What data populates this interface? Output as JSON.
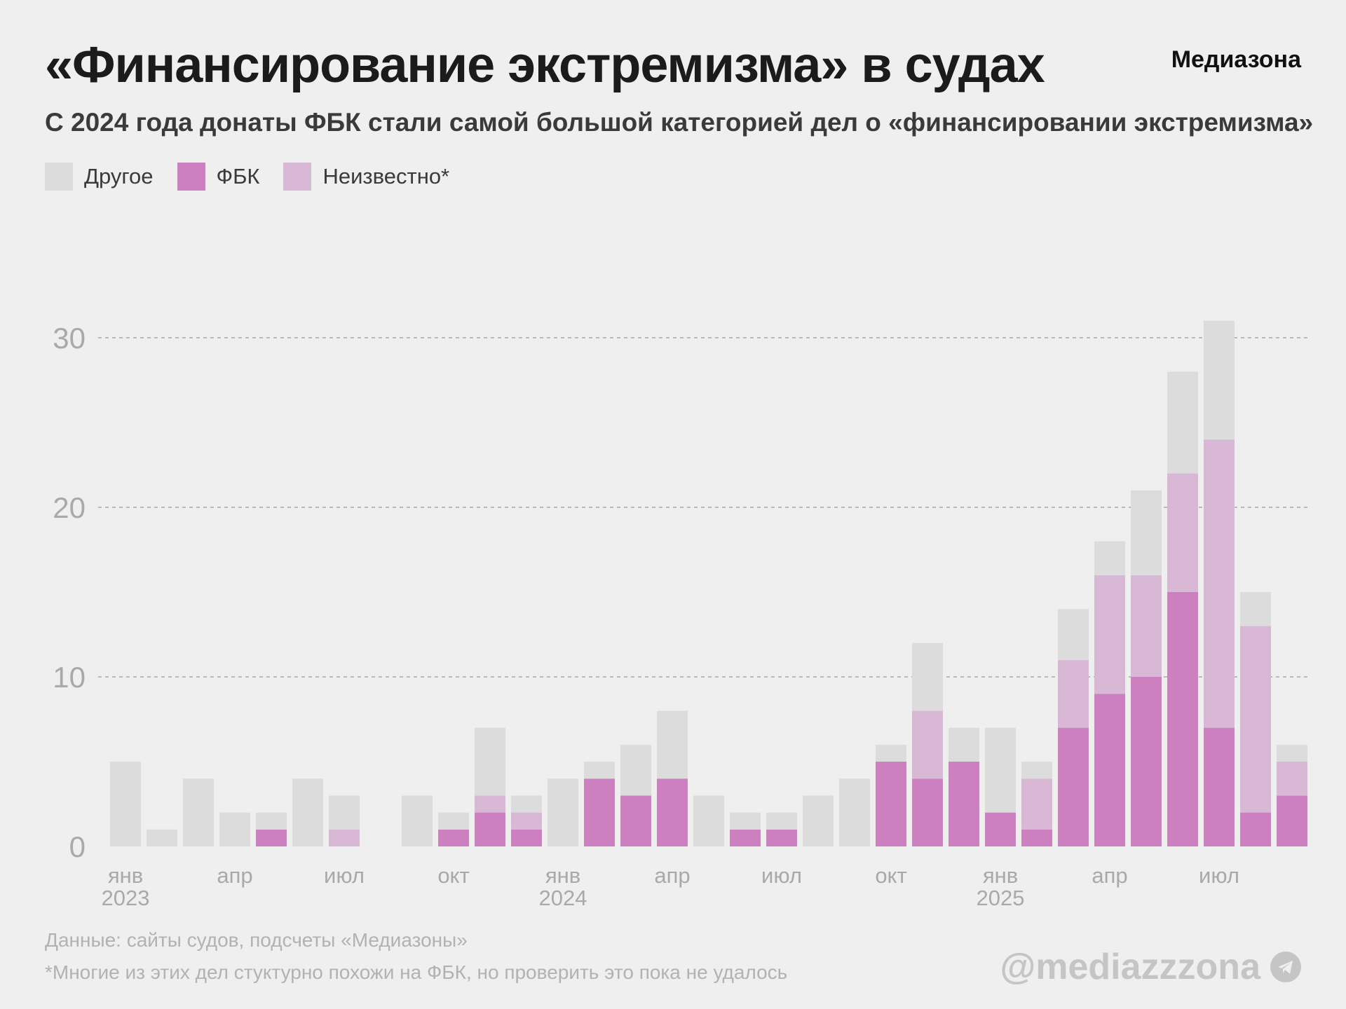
{
  "title": "«Финансирование экстремизма» в судах",
  "brand": "Медиазона",
  "subtitle": "С 2024 года донаты ФБК стали самой большой категорией дел о «финансировании экстремизма»",
  "legend": [
    {
      "label": "Другое",
      "color": "#dcdcdc"
    },
    {
      "label": "ФБК",
      "color": "#cc80c0"
    },
    {
      "label": "Неизвестно*",
      "color": "#d8b8d4"
    }
  ],
  "footnotes": {
    "source": "Данные: сайты судов, подсчеты «Медиазоны»",
    "note": "*Многие из этих дел стуктурно похожи на ФБК, но проверить это пока не удалось"
  },
  "handle": "@mediazzzona",
  "icons": {
    "telegram": "telegram-icon"
  },
  "chart_data": {
    "type": "bar",
    "stacked": true,
    "title": "",
    "xlabel": "",
    "ylabel": "",
    "ylim": [
      0,
      32
    ],
    "yticks": [
      0,
      10,
      20,
      30
    ],
    "grid": true,
    "categories": [
      "2023-01",
      "2023-02",
      "2023-03",
      "2023-04",
      "2023-05",
      "2023-06",
      "2023-07",
      "2023-08",
      "2023-09",
      "2023-10",
      "2023-11",
      "2023-12",
      "2024-01",
      "2024-02",
      "2024-03",
      "2024-04",
      "2024-05",
      "2024-06",
      "2024-07",
      "2024-08",
      "2024-09",
      "2024-10",
      "2024-11",
      "2024-12",
      "2025-01",
      "2025-02",
      "2025-03",
      "2025-04",
      "2025-05",
      "2025-06",
      "2025-07",
      "2025-08",
      "2025-09"
    ],
    "xtick_labels": [
      {
        "index": 0,
        "month": "янв",
        "year": "2023"
      },
      {
        "index": 3,
        "month": "апр",
        "year": ""
      },
      {
        "index": 6,
        "month": "июл",
        "year": ""
      },
      {
        "index": 9,
        "month": "окт",
        "year": ""
      },
      {
        "index": 12,
        "month": "янв",
        "year": "2024"
      },
      {
        "index": 15,
        "month": "апр",
        "year": ""
      },
      {
        "index": 18,
        "month": "июл",
        "year": ""
      },
      {
        "index": 21,
        "month": "окт",
        "year": ""
      },
      {
        "index": 24,
        "month": "янв",
        "year": "2025"
      },
      {
        "index": 27,
        "month": "апр",
        "year": ""
      },
      {
        "index": 30,
        "month": "июл",
        "year": ""
      }
    ],
    "series": [
      {
        "name": "ФБК",
        "color": "#cc80c0",
        "values": [
          0,
          0,
          0,
          0,
          1,
          0,
          0,
          0,
          0,
          1,
          2,
          1,
          0,
          4,
          3,
          4,
          0,
          1,
          1,
          0,
          0,
          5,
          4,
          5,
          2,
          1,
          7,
          9,
          10,
          15,
          7,
          2,
          3
        ]
      },
      {
        "name": "Неизвестно*",
        "color": "#d8b8d4",
        "values": [
          0,
          0,
          0,
          0,
          0,
          0,
          1,
          0,
          0,
          0,
          1,
          1,
          0,
          0,
          0,
          0,
          0,
          0,
          0,
          0,
          0,
          0,
          4,
          0,
          0,
          3,
          4,
          7,
          6,
          7,
          17,
          11,
          2
        ]
      },
      {
        "name": "Другое",
        "color": "#dcdcdc",
        "values": [
          5,
          1,
          4,
          2,
          1,
          4,
          2,
          0,
          3,
          1,
          4,
          1,
          4,
          1,
          3,
          4,
          3,
          1,
          1,
          3,
          4,
          1,
          4,
          2,
          5,
          1,
          3,
          2,
          5,
          6,
          7,
          2,
          1
        ]
      }
    ]
  }
}
